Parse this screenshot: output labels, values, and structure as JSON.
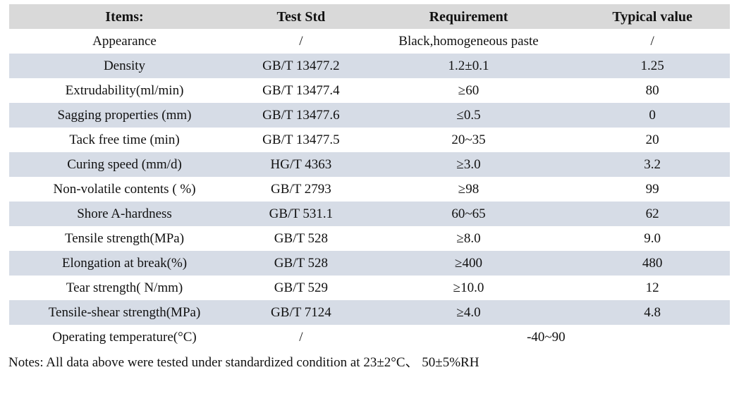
{
  "colors": {
    "header_bg": "#d9d9d9",
    "stripe_bg": "#d6dce6",
    "text": "#111111"
  },
  "table": {
    "columns": [
      "Items:",
      "Test Std",
      "Requirement",
      "Typical value"
    ],
    "rows": [
      {
        "item": "Appearance",
        "std": "/",
        "req": "Black,homogeneous paste",
        "typ": "/"
      },
      {
        "item": "Density",
        "std": "GB/T 13477.2",
        "req": "1.2±0.1",
        "typ": "1.25"
      },
      {
        "item": "Extrudability(ml/min)",
        "std": "GB/T 13477.4",
        "req": "≥60",
        "typ": "80"
      },
      {
        "item": "Sagging properties (mm)",
        "std": "GB/T 13477.6",
        "req": "≤0.5",
        "typ": "0"
      },
      {
        "item": "Tack free time (min)",
        "std": "GB/T 13477.5",
        "req": "20~35",
        "typ": "20"
      },
      {
        "item": "Curing speed (mm/d)",
        "std": "HG/T 4363",
        "req": "≥3.0",
        "typ": "3.2"
      },
      {
        "item": "Non-volatile contents ( %)",
        "std": "GB/T 2793",
        "req": "≥98",
        "typ": "99"
      },
      {
        "item": "Shore A-hardness",
        "std": "GB/T 531.1",
        "req": "60~65",
        "typ": "62"
      },
      {
        "item": "Tensile strength(MPa)",
        "std": "GB/T 528",
        "req": "≥8.0",
        "typ": "9.0"
      },
      {
        "item": "Elongation at break(%)",
        "std": "GB/T 528",
        "req": "≥400",
        "typ": "480"
      },
      {
        "item": "Tear strength( N/mm)",
        "std": "GB/T 529",
        "req": "≥10.0",
        "typ": "12"
      },
      {
        "item": "Tensile-shear strength(MPa)",
        "std": "GB/T 7124",
        "req": "≥4.0",
        "typ": "4.8"
      },
      {
        "item": "Operating temperature(°C)",
        "std": "/",
        "req": "-40~90",
        "merged": true
      }
    ]
  },
  "notes": "Notes: All data above were tested under standardized condition at 23±2°C、 50±5%RH"
}
